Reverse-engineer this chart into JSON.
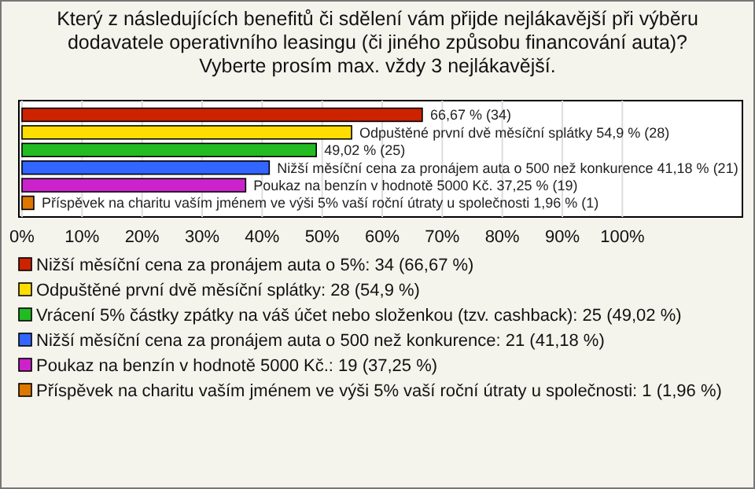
{
  "chart_data": {
    "type": "bar",
    "orientation": "horizontal",
    "title": "Který z následujících benefitů či sdělení vám přijde nejlákavější při výběru dodavatele operativního leasingu (či jiného způsobu financování auta)? Vyberte prosím max. vždy 3 nejlákavější.",
    "categories": [
      null,
      null,
      null,
      null,
      null,
      null
    ],
    "series": [
      {
        "name": "Nižší měsíční cena za pronájem auta o 5%: 34 (66,67 %)",
        "color": "#cc2200",
        "values": [
          66.67,
          null,
          null,
          null,
          null,
          null
        ],
        "value_labels": [
          "66,67 % (34)",
          null,
          null,
          null,
          null,
          null
        ]
      },
      {
        "name": "Odpuštěné první dvě měsíční splátky: 28 (54,9 %)",
        "color": "#ffdd00",
        "values": [
          null,
          54.9,
          null,
          null,
          null,
          null
        ],
        "value_labels": [
          null,
          "Odpuštěné první dvě měsíční splátky 54,9 % (28)",
          null,
          null,
          null,
          null
        ]
      },
      {
        "name": "Vrácení 5% částky zpátky na váš účet nebo složenkou (tzv. cashback): 25 (49,02 %)",
        "color": "#22bb22",
        "values": [
          null,
          null,
          49.02,
          null,
          null,
          null
        ],
        "value_labels": [
          null,
          null,
          "49,02 % (25)",
          null,
          null,
          null
        ]
      },
      {
        "name": "Nižší měsíční cena za pronájem auta o 500 než konkurence: 21 (41,18 %)",
        "color": "#3366ff",
        "values": [
          null,
          null,
          null,
          41.18,
          null,
          null
        ],
        "value_labels": [
          null,
          null,
          null,
          "Nižší měsíční cena za pronájem auta o 500 než konkurence 41,18 % (21)",
          null,
          null
        ]
      },
      {
        "name": "Poukaz na benzín v hodnotě 5000 Kč.: 19 (37,25 %)",
        "color": "#cc22cc",
        "values": [
          null,
          null,
          null,
          null,
          37.25,
          null
        ],
        "value_labels": [
          null,
          null,
          null,
          null,
          "Poukaz na benzín v hodnotě 5000 Kč. 37,25 % (19)",
          null
        ]
      },
      {
        "name": "Příspěvek na charitu vaším jménem ve výši 5% vaší roční útraty u společnosti: 1 (1,96 %)",
        "color": "#dd7700",
        "values": [
          null,
          null,
          null,
          null,
          null,
          1.96
        ],
        "value_labels": [
          null,
          null,
          null,
          null,
          null,
          "Příspěvek na charitu vaším jménem ve výši 5% vaší roční útraty u společnosti 1,96 % (1)"
        ]
      }
    ],
    "xlim": [
      0,
      120
    ],
    "xticks": [
      {
        "value": 0,
        "label": "0%"
      },
      {
        "value": 10,
        "label": "10%"
      },
      {
        "value": 20,
        "label": "20%"
      },
      {
        "value": 30,
        "label": "30%"
      },
      {
        "value": 40,
        "label": "40%"
      },
      {
        "value": 50,
        "label": "50%"
      },
      {
        "value": 60,
        "label": "60%"
      },
      {
        "value": 70,
        "label": "70%"
      },
      {
        "value": 80,
        "label": "80%"
      },
      {
        "value": 90,
        "label": "90%"
      },
      {
        "value": 100,
        "label": "100%"
      }
    ],
    "grid": "x",
    "legend": "bottom"
  }
}
